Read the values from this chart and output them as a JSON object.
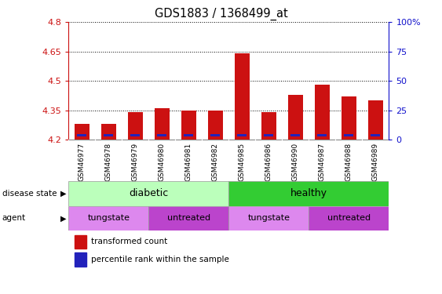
{
  "title": "GDS1883 / 1368499_at",
  "samples": [
    "GSM46977",
    "GSM46978",
    "GSM46979",
    "GSM46980",
    "GSM46981",
    "GSM46982",
    "GSM46985",
    "GSM46986",
    "GSM46990",
    "GSM46987",
    "GSM46988",
    "GSM46989"
  ],
  "transformed_count": [
    4.28,
    4.28,
    4.34,
    4.36,
    4.35,
    4.35,
    4.64,
    4.34,
    4.43,
    4.48,
    4.42,
    4.4
  ],
  "blue_bar_value": [
    4.215,
    4.215,
    4.215,
    4.215,
    4.215,
    4.215,
    4.215,
    4.215,
    4.215,
    4.215,
    4.215,
    4.215
  ],
  "blue_bar_height": 0.012,
  "ymin": 4.2,
  "ymax": 4.8,
  "yticks": [
    4.2,
    4.35,
    4.5,
    4.65,
    4.8
  ],
  "ytick_labels": [
    "4.2",
    "4.35",
    "4.5",
    "4.65",
    "4.8"
  ],
  "right_yticks": [
    0,
    25,
    50,
    75,
    100
  ],
  "right_ytick_labels": [
    "0",
    "25",
    "50",
    "75",
    "100%"
  ],
  "bar_color_red": "#cc1111",
  "bar_color_blue": "#2222bb",
  "bar_width": 0.55,
  "blue_bar_width": 0.35,
  "disease_state_groups": [
    {
      "label": "diabetic",
      "start": 0,
      "end": 5,
      "color": "#bbffbb"
    },
    {
      "label": "healthy",
      "start": 6,
      "end": 11,
      "color": "#33cc33"
    }
  ],
  "agent_groups": [
    {
      "label": "tungstate",
      "start": 0,
      "end": 2,
      "color": "#dd88ee"
    },
    {
      "label": "untreated",
      "start": 3,
      "end": 5,
      "color": "#bb44cc"
    },
    {
      "label": "tungstate",
      "start": 6,
      "end": 8,
      "color": "#dd88ee"
    },
    {
      "label": "untreated",
      "start": 9,
      "end": 11,
      "color": "#bb44cc"
    }
  ],
  "label_disease_state": "disease state",
  "label_agent": "agent",
  "legend_items": [
    {
      "label": "transformed count",
      "color": "#cc1111"
    },
    {
      "label": "percentile rank within the sample",
      "color": "#2222bb"
    }
  ],
  "left_axis_color": "#cc1111",
  "right_axis_color": "#1111cc",
  "tick_area_bg": "#cccccc",
  "plot_bg": "#ffffff"
}
